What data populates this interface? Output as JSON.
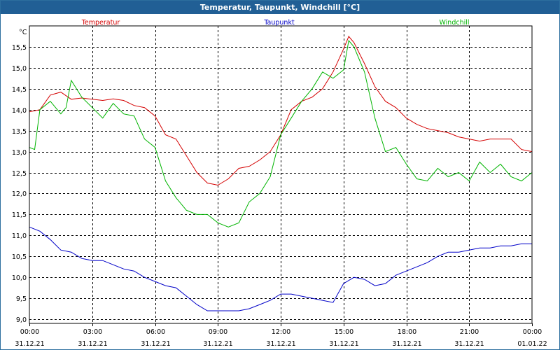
{
  "window": {
    "title": "Temperatur, Taupunkt, Windchill [°C]"
  },
  "chart_data": {
    "type": "line",
    "title": "Temperatur, Taupunkt, Windchill [°C]",
    "ylabel": "°C",
    "xlabel": "",
    "ylim": [
      8.9,
      16.0
    ],
    "yticks": [
      9.0,
      9.5,
      10.0,
      10.5,
      11.0,
      11.5,
      12.0,
      12.5,
      13.0,
      13.5,
      14.0,
      14.5,
      15.0,
      15.5
    ],
    "ytick_labels": [
      "9,0",
      "9,5",
      "10,0",
      "10,5",
      "11,0",
      "11,5",
      "12,0",
      "12,5",
      "13,0",
      "13,5",
      "14,0",
      "14,5",
      "15,0",
      "15,5"
    ],
    "x_unit": "hours from 31.12.21 00:00",
    "xlim": [
      0,
      24
    ],
    "xticks": [
      0,
      3,
      6,
      9,
      12,
      15,
      18,
      21,
      24
    ],
    "xtick_time_labels": [
      "00:00",
      "03:00",
      "06:00",
      "09:00",
      "12:00",
      "15:00",
      "18:00",
      "21:00",
      "00:00"
    ],
    "xtick_date_labels": [
      "31.12.21",
      "31.12.21",
      "31.12.21",
      "31.12.21",
      "31.12.21",
      "31.12.21",
      "31.12.21",
      "31.12.21",
      "01.01.22"
    ],
    "grid": true,
    "legend": "top",
    "series": [
      {
        "name": "Temperatur",
        "color": "#d40000",
        "x": [
          0,
          0.5,
          1,
          1.5,
          2,
          2.5,
          3,
          3.5,
          4,
          4.5,
          5,
          5.5,
          6,
          6.5,
          7,
          7.5,
          8,
          8.5,
          9,
          9.5,
          10,
          10.5,
          11,
          11.5,
          12,
          12.5,
          13,
          13.5,
          14,
          14.5,
          15,
          15.25,
          15.5,
          16,
          16.5,
          17,
          17.5,
          18,
          18.5,
          19,
          19.5,
          20,
          20.5,
          21,
          21.5,
          22,
          22.5,
          23,
          23.5,
          24
        ],
        "values": [
          13.95,
          14.0,
          14.35,
          14.42,
          14.25,
          14.28,
          14.25,
          14.22,
          14.26,
          14.22,
          14.1,
          14.05,
          13.85,
          13.4,
          13.3,
          12.9,
          12.5,
          12.25,
          12.2,
          12.35,
          12.6,
          12.65,
          12.8,
          13.0,
          13.4,
          14.0,
          14.2,
          14.3,
          14.5,
          14.9,
          15.45,
          15.75,
          15.6,
          15.1,
          14.55,
          14.2,
          14.05,
          13.8,
          13.65,
          13.55,
          13.5,
          13.45,
          13.35,
          13.3,
          13.25,
          13.3,
          13.3,
          13.3,
          13.05,
          13.0
        ]
      },
      {
        "name": "Taupunkt",
        "color": "#0000c8",
        "x": [
          0,
          0.5,
          1,
          1.5,
          2,
          2.5,
          3,
          3.5,
          4,
          4.5,
          5,
          5.5,
          6,
          6.5,
          7,
          7.5,
          8,
          8.5,
          9,
          9.5,
          10,
          10.5,
          11,
          11.5,
          12,
          12.5,
          13,
          13.5,
          14,
          14.5,
          15,
          15.5,
          16,
          16.5,
          17,
          17.5,
          18,
          18.5,
          19,
          19.5,
          20,
          20.5,
          21,
          21.5,
          22,
          22.5,
          23,
          23.5,
          24
        ],
        "values": [
          11.2,
          11.1,
          10.9,
          10.65,
          10.6,
          10.45,
          10.4,
          10.4,
          10.3,
          10.2,
          10.15,
          10.0,
          9.9,
          9.8,
          9.75,
          9.55,
          9.35,
          9.2,
          9.2,
          9.2,
          9.2,
          9.25,
          9.35,
          9.45,
          9.6,
          9.6,
          9.55,
          9.5,
          9.45,
          9.4,
          9.85,
          10.0,
          9.95,
          9.8,
          9.85,
          10.05,
          10.15,
          10.25,
          10.35,
          10.5,
          10.6,
          10.6,
          10.65,
          10.7,
          10.7,
          10.75,
          10.75,
          10.8,
          10.8
        ]
      },
      {
        "name": "Windchill",
        "color": "#00b400",
        "x": [
          0,
          0.25,
          0.5,
          1,
          1.5,
          1.75,
          2,
          2.5,
          3,
          3.5,
          4,
          4.5,
          5,
          5.5,
          6,
          6.5,
          7,
          7.5,
          8,
          8.5,
          9,
          9.5,
          10,
          10.5,
          11,
          11.5,
          12,
          12.5,
          13,
          13.5,
          14,
          14.5,
          15,
          15.25,
          15.5,
          16,
          16.5,
          17,
          17.5,
          18,
          18.5,
          19,
          19.5,
          20,
          20.5,
          21,
          21.5,
          22,
          22.5,
          23,
          23.5,
          24
        ],
        "values": [
          13.1,
          13.05,
          14.0,
          14.2,
          13.9,
          14.05,
          14.7,
          14.3,
          14.05,
          13.8,
          14.15,
          13.9,
          13.85,
          13.3,
          13.1,
          12.3,
          11.9,
          11.6,
          11.5,
          11.5,
          11.3,
          11.2,
          11.3,
          11.8,
          12.0,
          12.4,
          13.4,
          13.8,
          14.2,
          14.5,
          14.9,
          14.75,
          14.95,
          15.65,
          15.5,
          14.9,
          13.8,
          13.0,
          13.1,
          12.7,
          12.35,
          12.3,
          12.6,
          12.4,
          12.5,
          12.3,
          12.75,
          12.5,
          12.7,
          12.4,
          12.3,
          12.5
        ]
      }
    ]
  }
}
